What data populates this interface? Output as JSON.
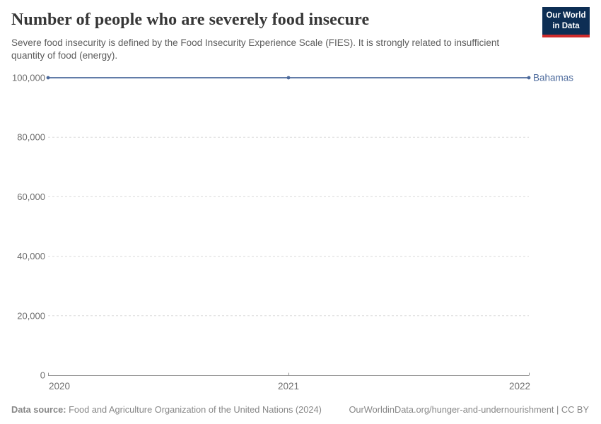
{
  "header": {
    "title": "Number of people who are severely food insecure",
    "subtitle": "Severe food insecurity is defined by the Food Insecurity Experience Scale (FIES). It is strongly related to insufficient quantity of food (energy).",
    "logo": {
      "line1": "Our World",
      "line2": "in Data"
    }
  },
  "chart_data": {
    "type": "line",
    "x": [
      2020,
      2021,
      2022
    ],
    "x_tick_labels": [
      "2020",
      "2021",
      "2022"
    ],
    "series": [
      {
        "name": "Bahamas",
        "values": [
          100000,
          100000,
          100000
        ]
      }
    ],
    "ylim": [
      0,
      100000
    ],
    "yticks": [
      0,
      20000,
      40000,
      60000,
      80000,
      100000
    ],
    "ytick_labels": [
      "0",
      "20,000",
      "40,000",
      "60,000",
      "80,000",
      "100,000"
    ],
    "grid": true,
    "legend_position": "right-of-line-end",
    "title": "Number of people who are severely food insecure",
    "xlabel": "",
    "ylabel": ""
  },
  "footer": {
    "source_label": "Data source:",
    "source_text": "Food and Agriculture Organization of the United Nations (2024)",
    "url_text": "OurWorldinData.org/hunger-and-undernourishment | CC BY"
  },
  "colors": {
    "series": "#4C6A9C",
    "grid": "#dcdcdc",
    "axis": "#8f8f8f",
    "tick_text": "#6e6e6e",
    "logo_bg": "#0d2e54",
    "logo_accent": "#cf2b2b"
  }
}
